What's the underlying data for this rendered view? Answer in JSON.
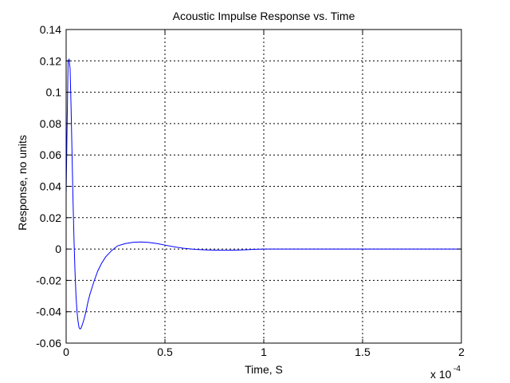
{
  "chart_data": {
    "type": "line",
    "title": "Acoustic Impulse Response vs. Time",
    "xlabel": "Time, S",
    "ylabel": "Response, no units",
    "x_exponent_base": "x 10",
    "x_exponent_power": "-4",
    "xlim": [
      0,
      2
    ],
    "ylim": [
      -0.06,
      0.14
    ],
    "xticks": [
      0,
      0.5,
      1,
      1.5,
      2
    ],
    "xtick_labels": [
      "0",
      "0.5",
      "1",
      "1.5",
      "2"
    ],
    "yticks": [
      -0.06,
      -0.04,
      -0.02,
      0,
      0.02,
      0.04,
      0.06,
      0.08,
      0.1,
      0.12,
      0.14
    ],
    "ytick_labels": [
      "-0.06",
      "-0.04",
      "-0.02",
      "0",
      "0.02",
      "0.04",
      "0.06",
      "0.08",
      "0.1",
      "0.12",
      "0.14"
    ],
    "grid": true,
    "box": true,
    "line_color": "#0000ff",
    "grid_color": "#000000",
    "series": [
      {
        "x": [
          0,
          0.005,
          0.01,
          0.015,
          0.02,
          0.025,
          0.03,
          0.035,
          0.04,
          0.045,
          0.05,
          0.055,
          0.06,
          0.065,
          0.07,
          0.075,
          0.08,
          0.09,
          0.1,
          0.11,
          0.12,
          0.14,
          0.16,
          0.18,
          0.2,
          0.23,
          0.26,
          0.3,
          0.34,
          0.38,
          0.42,
          0.46,
          0.5,
          0.55,
          0.6,
          0.65,
          0.7,
          0.75,
          0.8,
          0.85,
          0.9,
          0.95,
          1,
          1.25,
          1.5,
          1.75,
          2
        ],
        "y": [
          0.035,
          0.08,
          0.12,
          0.121,
          0.115,
          0.09,
          0.06,
          0.03,
          0.005,
          -0.015,
          -0.03,
          -0.04,
          -0.046,
          -0.05,
          -0.051,
          -0.0505,
          -0.049,
          -0.045,
          -0.04,
          -0.034,
          -0.029,
          -0.021,
          -0.014,
          -0.009,
          -0.005,
          -0.001,
          0.002,
          0.0035,
          0.0043,
          0.0045,
          0.0042,
          0.0035,
          0.0025,
          0.0013,
          0.0004,
          -0.0002,
          -0.0005,
          -0.0007,
          -0.0008,
          -0.0007,
          -0.0005,
          -0.0002,
          0,
          0,
          0,
          0,
          0
        ]
      }
    ]
  }
}
